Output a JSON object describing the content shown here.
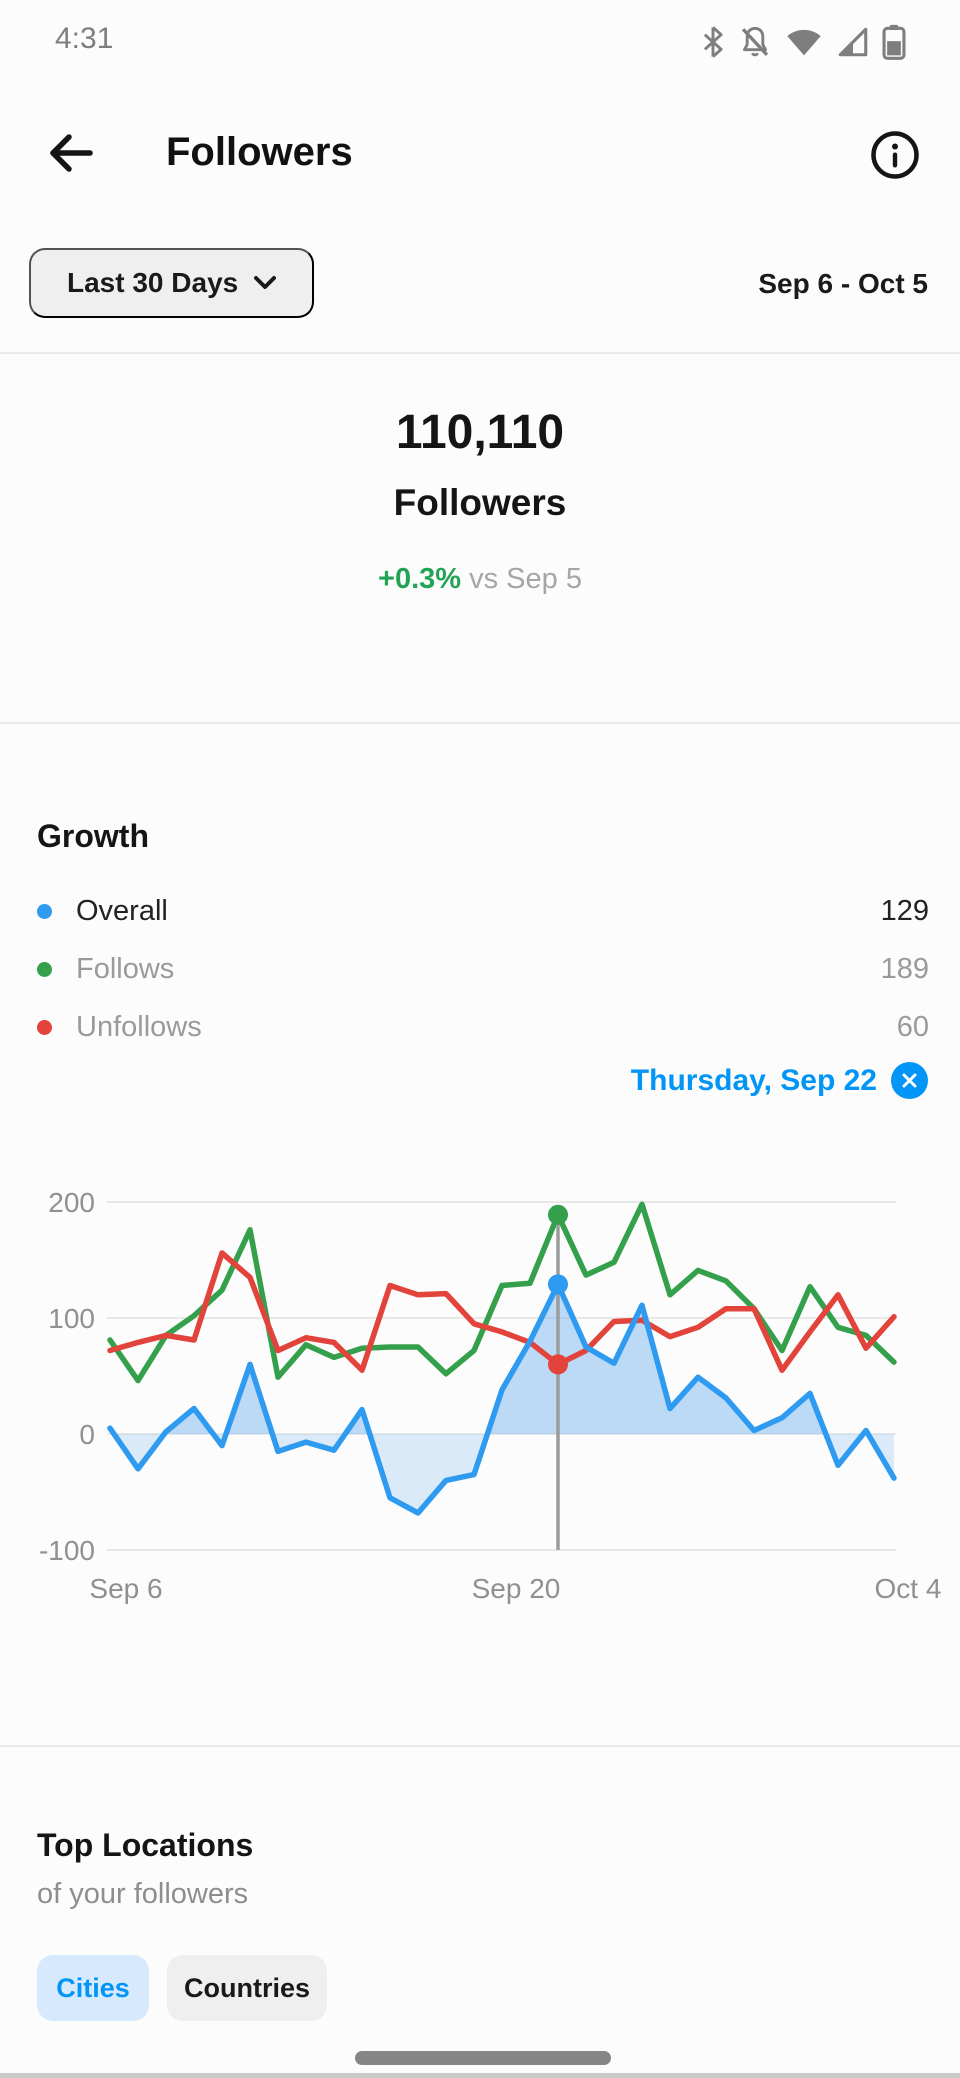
{
  "status_bar": {
    "time": "4:31",
    "icons": [
      "bluetooth-icon",
      "notifications-off-icon",
      "wifi-icon",
      "cell-signal-icon",
      "battery-icon"
    ],
    "icon_color": "#7E7E7E"
  },
  "header": {
    "title": "Followers"
  },
  "filter": {
    "range_button_label": "Last 30 Days",
    "date_range": "Sep 6 - Oct 5"
  },
  "hero": {
    "count": "110,110",
    "label": "Followers",
    "delta": "+0.3%",
    "delta_suffix": " vs Sep 5",
    "delta_color": "#22A454"
  },
  "growth": {
    "title": "Growth",
    "legend": [
      {
        "label": "Overall",
        "value": "129",
        "color": "#2E9BF0"
      },
      {
        "label": "Follows",
        "value": "189",
        "color": "#35A04B"
      },
      {
        "label": "Unfollows",
        "value": "60",
        "color": "#E2433B"
      }
    ],
    "selected_day_label": "Thursday, Sep 22",
    "selected_day_color": "#0095F6"
  },
  "chart_data": {
    "type": "line",
    "title": "Growth",
    "x": [
      "Sep 6",
      "Sep 7",
      "Sep 8",
      "Sep 9",
      "Sep 10",
      "Sep 11",
      "Sep 12",
      "Sep 13",
      "Sep 14",
      "Sep 15",
      "Sep 16",
      "Sep 17",
      "Sep 18",
      "Sep 19",
      "Sep 20",
      "Sep 21",
      "Sep 22",
      "Sep 23",
      "Sep 24",
      "Sep 25",
      "Sep 26",
      "Sep 27",
      "Sep 28",
      "Sep 29",
      "Sep 30",
      "Oct 1",
      "Oct 2",
      "Oct 3",
      "Oct 4"
    ],
    "series": [
      {
        "name": "Follows",
        "color": "#35A04B",
        "fill": false,
        "values": [
          81,
          46,
          85,
          102,
          124,
          176,
          49,
          77,
          66,
          74,
          75,
          75,
          52,
          72,
          128,
          130,
          189,
          137,
          148,
          198,
          120,
          141,
          132,
          108,
          72,
          127,
          92,
          85,
          62
        ]
      },
      {
        "name": "Unfollows",
        "color": "#E2433B",
        "fill": false,
        "values": [
          72,
          79,
          85,
          81,
          156,
          135,
          72,
          83,
          79,
          55,
          128,
          120,
          121,
          95,
          88,
          79,
          60,
          72,
          97,
          98,
          84,
          92,
          108,
          108,
          55,
          88,
          120,
          74,
          101
        ]
      },
      {
        "name": "Overall",
        "color": "#2E9BF0",
        "fill": true,
        "values": [
          5,
          -30,
          2,
          22,
          -10,
          60,
          -15,
          -7,
          -14,
          21,
          -55,
          -68,
          -40,
          -35,
          38,
          80,
          129,
          75,
          61,
          111,
          22,
          49,
          31,
          3,
          14,
          35,
          -27,
          3,
          -38
        ]
      }
    ],
    "ylim": [
      -100,
      200
    ],
    "yticks": [
      200,
      100,
      0,
      -100
    ],
    "xticks": [
      {
        "index": 0,
        "label": "Sep 6"
      },
      {
        "index": 14,
        "label": "Sep 20"
      },
      {
        "index": 28,
        "label": "Oct 4"
      }
    ],
    "selected_index": 16,
    "selected_label": "Thursday, Sep 22",
    "grid": true,
    "grid_color": "#E8E8E8",
    "axis_label_color": "#909090",
    "marker_color": "#9B9B9B",
    "fill_above_color": "#6FAFEE",
    "fill_below_color": "#9CC8F2",
    "legend_position": "top"
  },
  "locations": {
    "title": "Top Locations",
    "subtitle": "of your followers",
    "tabs": [
      {
        "label": "Cities",
        "active": true
      },
      {
        "label": "Countries",
        "active": false
      }
    ]
  }
}
